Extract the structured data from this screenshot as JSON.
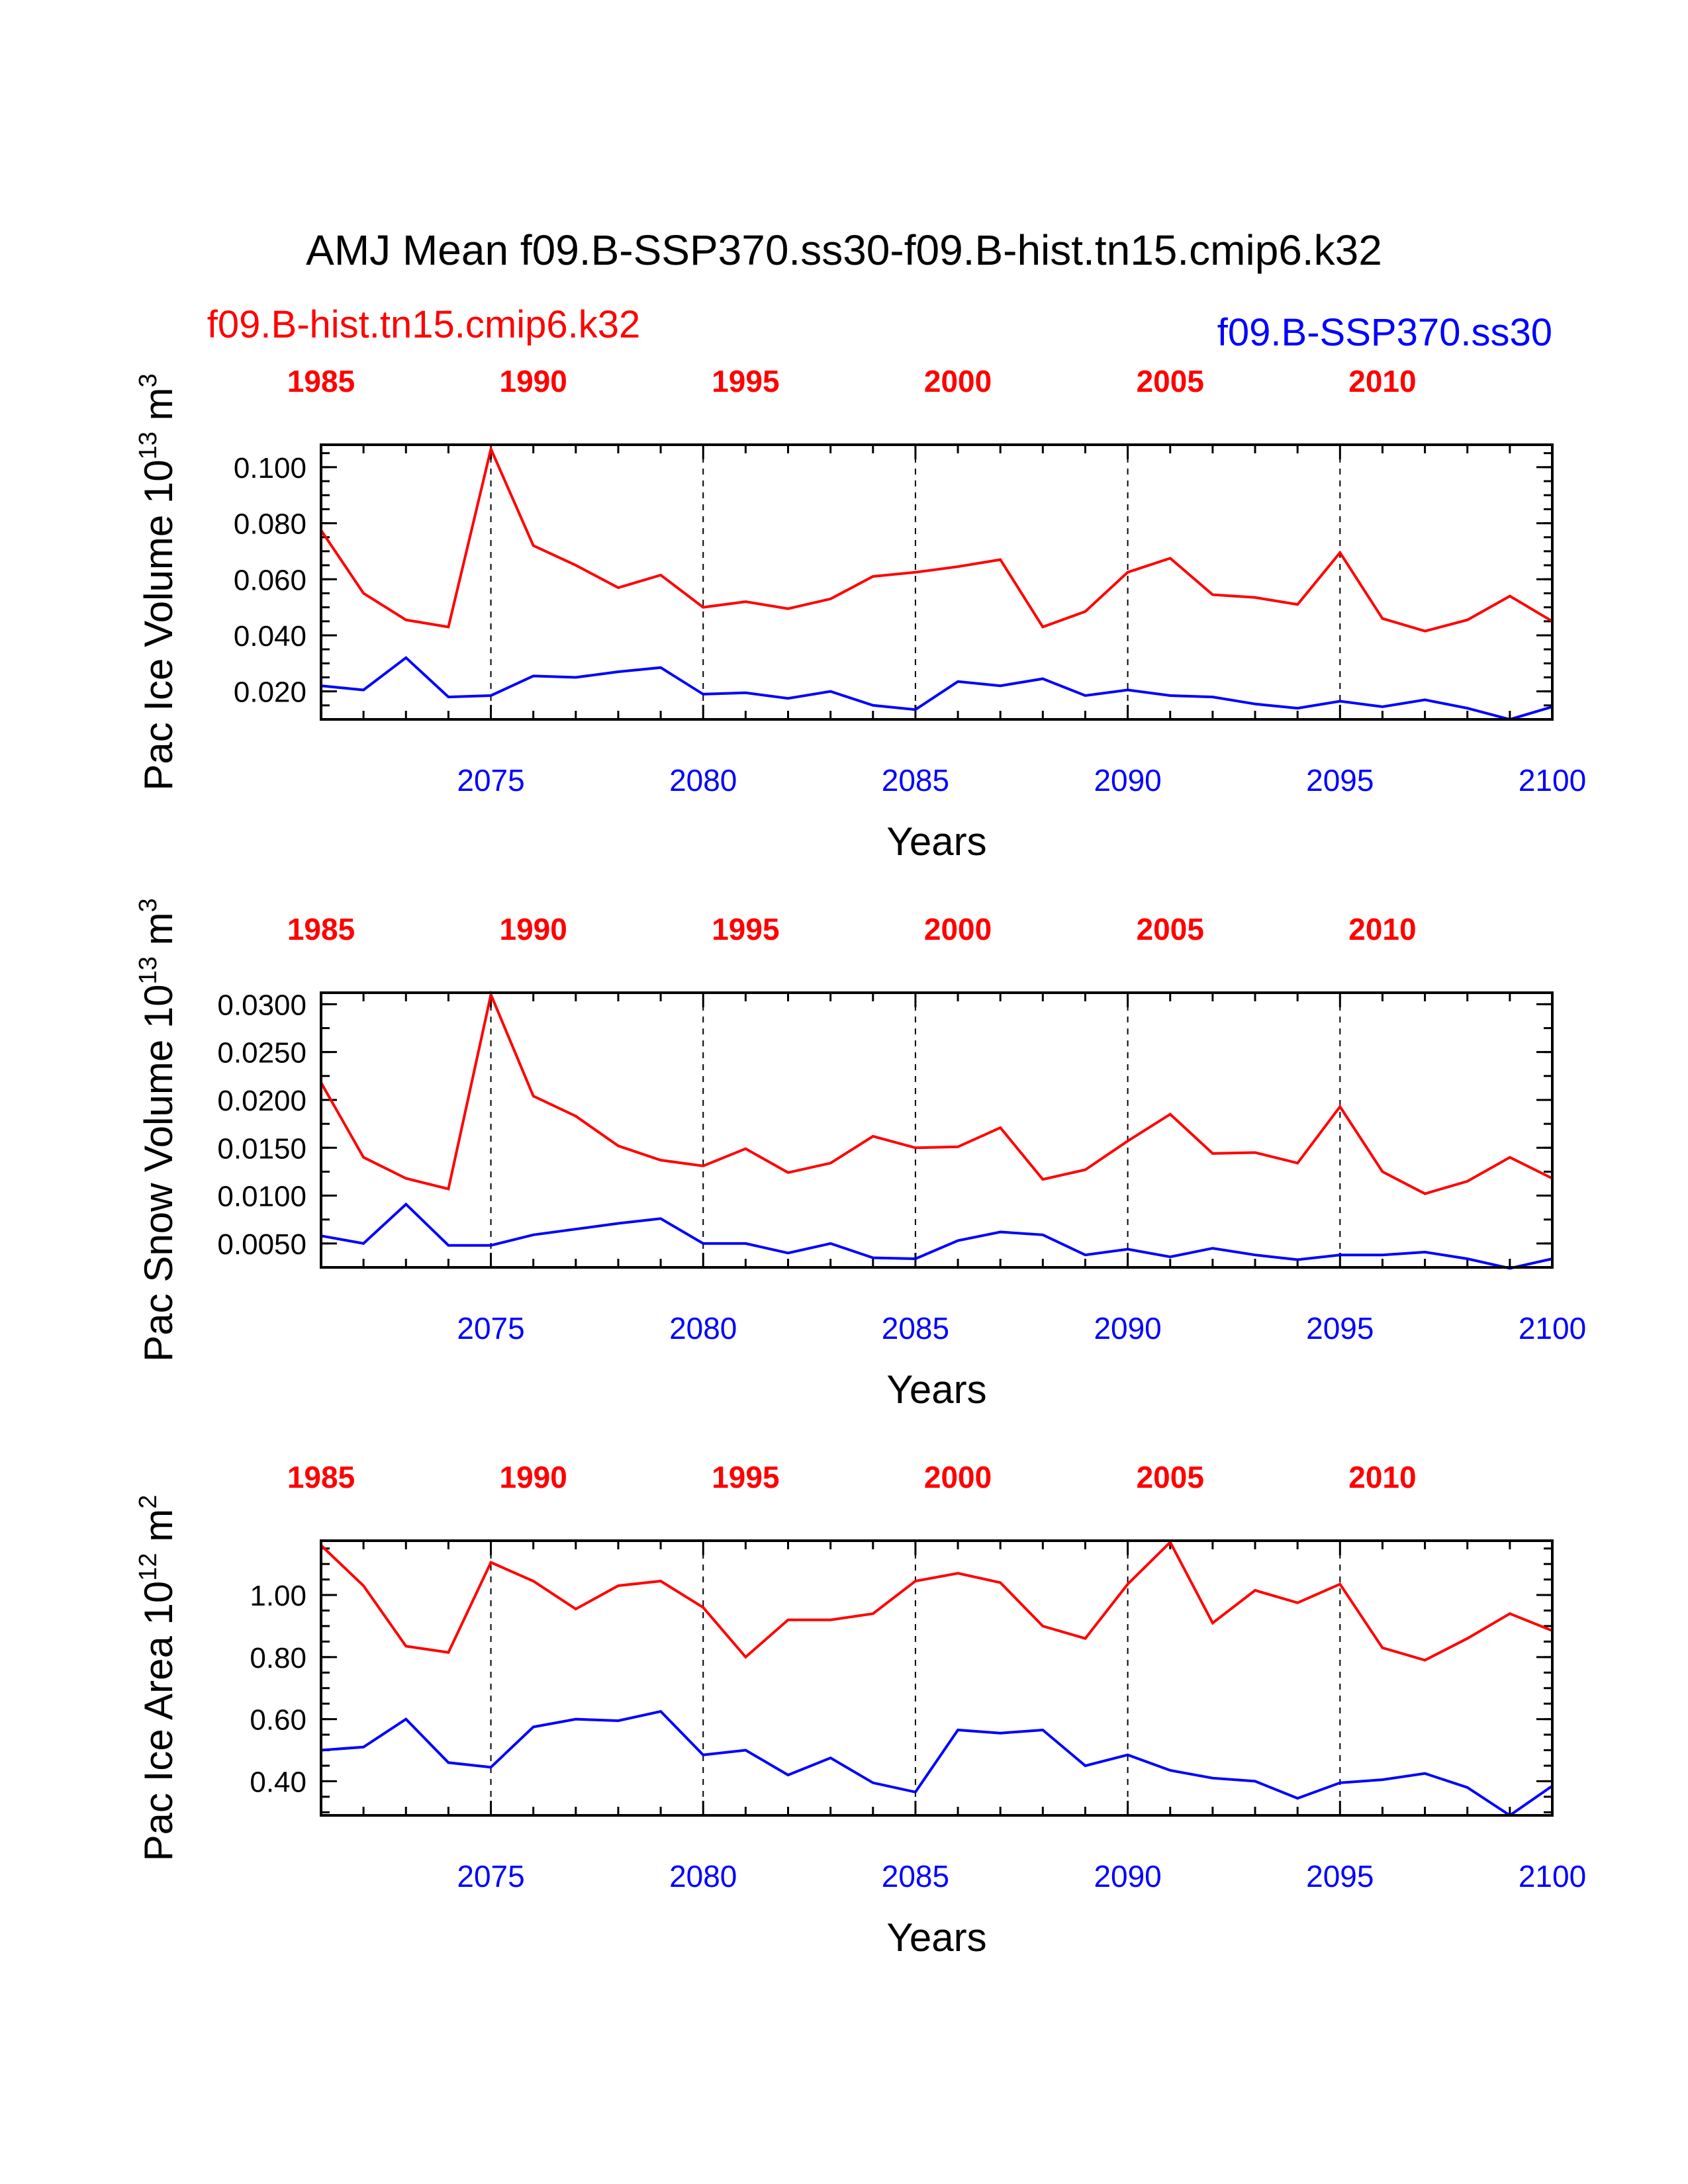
{
  "title": "AMJ Mean f09.B-SSP370.ss30-f09.B-hist.tn15.cmip6.k32",
  "legend": {
    "hist": {
      "label": "f09.B-hist.tn15.cmip6.k32",
      "color": "#ff0000"
    },
    "ssp": {
      "label": "f09.B-SSP370.ss30",
      "color": "#0000ff"
    }
  },
  "colors": {
    "hist": "#ff0000",
    "ssp": "#0000ff",
    "axis": "#000000"
  },
  "chart_data": [
    {
      "type": "line",
      "ylabel_main": "Pac Ice Volume 10",
      "ylabel_exp": "13",
      "ylabel_unit": " m",
      "ylabel_unit_exp": "3",
      "xlabel": "Years",
      "xlim": [
        2071,
        2100
      ],
      "ylim": [
        0.01,
        0.108
      ],
      "yticks": [
        0.02,
        0.04,
        0.06,
        0.08,
        0.1
      ],
      "ytick_labels": [
        "0.020",
        "0.040",
        "0.060",
        "0.080",
        "0.100"
      ],
      "yminor_step": 0.005,
      "bottom_ticks": [
        2075,
        2080,
        2085,
        2090,
        2095,
        2100
      ],
      "bottom_tick_labels": [
        "2075",
        "2080",
        "2085",
        "2090",
        "2095",
        "2100"
      ],
      "top_ticks": [
        1985,
        1990,
        1995,
        2000,
        2005,
        2010
      ],
      "top_tick_labels": [
        "1985",
        "1990",
        "1995",
        "2000",
        "2005",
        "2010"
      ],
      "top_offset": 86,
      "grid_x": [
        2075,
        2080,
        2085,
        2090,
        2095
      ],
      "x": [
        2071,
        2072,
        2073,
        2074,
        2075,
        2076,
        2077,
        2078,
        2079,
        2080,
        2081,
        2082,
        2083,
        2084,
        2085,
        2086,
        2087,
        2088,
        2089,
        2090,
        2091,
        2092,
        2093,
        2094,
        2095,
        2096,
        2097,
        2098,
        2099,
        2100
      ],
      "series": [
        {
          "name": "f09.B-hist.tn15.cmip6.k32",
          "key": "hist",
          "values": [
            0.0775,
            0.055,
            0.0455,
            0.043,
            0.1065,
            0.072,
            0.065,
            0.057,
            0.0615,
            0.05,
            0.052,
            0.0495,
            0.053,
            0.061,
            0.0625,
            0.0645,
            0.067,
            0.043,
            0.0485,
            0.0625,
            0.0675,
            0.0545,
            0.0535,
            0.051,
            0.0695,
            0.046,
            0.0415,
            0.0455,
            0.054,
            0.045
          ]
        },
        {
          "name": "f09.B-SSP370.ss30",
          "key": "ssp",
          "values": [
            0.022,
            0.0205,
            0.032,
            0.018,
            0.0185,
            0.0255,
            0.025,
            0.027,
            0.0285,
            0.019,
            0.0195,
            0.0175,
            0.02,
            0.015,
            0.0135,
            0.0235,
            0.022,
            0.0245,
            0.0185,
            0.0205,
            0.0185,
            0.018,
            0.0155,
            0.014,
            0.0165,
            0.0145,
            0.017,
            0.014,
            0.01,
            0.0145
          ]
        }
      ]
    },
    {
      "type": "line",
      "ylabel_main": "Pac Snow Volume 10",
      "ylabel_exp": "13",
      "ylabel_unit": " m",
      "ylabel_unit_exp": "3",
      "xlabel": "Years",
      "xlim": [
        2071,
        2100
      ],
      "ylim": [
        0.0025,
        0.0312
      ],
      "yticks": [
        0.005,
        0.01,
        0.015,
        0.02,
        0.025,
        0.03
      ],
      "ytick_labels": [
        "0.0050",
        "0.0100",
        "0.0150",
        "0.0200",
        "0.0250",
        "0.0300"
      ],
      "yminor_step": 0.0025,
      "bottom_ticks": [
        2075,
        2080,
        2085,
        2090,
        2095,
        2100
      ],
      "bottom_tick_labels": [
        "2075",
        "2080",
        "2085",
        "2090",
        "2095",
        "2100"
      ],
      "top_ticks": [
        1985,
        1990,
        1995,
        2000,
        2005,
        2010
      ],
      "top_tick_labels": [
        "1985",
        "1990",
        "1995",
        "2000",
        "2005",
        "2010"
      ],
      "top_offset": 86,
      "grid_x": [
        2075,
        2080,
        2085,
        2090,
        2095
      ],
      "x": [
        2071,
        2072,
        2073,
        2074,
        2075,
        2076,
        2077,
        2078,
        2079,
        2080,
        2081,
        2082,
        2083,
        2084,
        2085,
        2086,
        2087,
        2088,
        2089,
        2090,
        2091,
        2092,
        2093,
        2094,
        2095,
        2096,
        2097,
        2098,
        2099,
        2100
      ],
      "series": [
        {
          "name": "f09.B-hist.tn15.cmip6.k32",
          "key": "hist",
          "values": [
            0.0218,
            0.014,
            0.0118,
            0.0107,
            0.031,
            0.0204,
            0.0183,
            0.0152,
            0.0137,
            0.0131,
            0.0149,
            0.0124,
            0.0134,
            0.0162,
            0.015,
            0.0151,
            0.0171,
            0.0117,
            0.0127,
            0.0157,
            0.0185,
            0.0144,
            0.0145,
            0.0134,
            0.0193,
            0.0125,
            0.0102,
            0.0115,
            0.014,
            0.0118
          ]
        },
        {
          "name": "f09.B-SSP370.ss30",
          "key": "ssp",
          "values": [
            0.0058,
            0.005,
            0.0091,
            0.0048,
            0.0048,
            0.0059,
            0.0065,
            0.0071,
            0.0076,
            0.005,
            0.005,
            0.004,
            0.005,
            0.0035,
            0.0034,
            0.0053,
            0.0062,
            0.0059,
            0.0038,
            0.0044,
            0.0036,
            0.0045,
            0.0038,
            0.0033,
            0.0038,
            0.0038,
            0.0041,
            0.0034,
            0.0024,
            0.0034
          ]
        }
      ]
    },
    {
      "type": "line",
      "ylabel_main": "Pac Ice Area 10",
      "ylabel_exp": "12",
      "ylabel_unit": " m",
      "ylabel_unit_exp": "2",
      "xlabel": "Years",
      "xlim": [
        2071,
        2100
      ],
      "ylim": [
        0.29,
        1.175
      ],
      "yticks": [
        0.4,
        0.6,
        0.8,
        1.0
      ],
      "ytick_labels": [
        "0.40",
        "0.60",
        "0.80",
        "1.00"
      ],
      "yminor_step": 0.05,
      "bottom_ticks": [
        2075,
        2080,
        2085,
        2090,
        2095,
        2100
      ],
      "bottom_tick_labels": [
        "2075",
        "2080",
        "2085",
        "2090",
        "2095",
        "2100"
      ],
      "top_ticks": [
        1985,
        1990,
        1995,
        2000,
        2005,
        2010
      ],
      "top_tick_labels": [
        "1985",
        "1990",
        "1995",
        "2000",
        "2005",
        "2010"
      ],
      "top_offset": 86,
      "grid_x": [
        2075,
        2080,
        2085,
        2090,
        2095
      ],
      "x": [
        2071,
        2072,
        2073,
        2074,
        2075,
        2076,
        2077,
        2078,
        2079,
        2080,
        2081,
        2082,
        2083,
        2084,
        2085,
        2086,
        2087,
        2088,
        2089,
        2090,
        2091,
        2092,
        2093,
        2094,
        2095,
        2096,
        2097,
        2098,
        2099,
        2100
      ],
      "series": [
        {
          "name": "f09.B-hist.tn15.cmip6.k32",
          "key": "hist",
          "values": [
            1.16,
            1.03,
            0.835,
            0.815,
            1.105,
            1.045,
            0.955,
            1.03,
            1.045,
            0.96,
            0.8,
            0.92,
            0.92,
            0.94,
            1.045,
            1.07,
            1.04,
            0.9,
            0.86,
            1.035,
            1.17,
            0.91,
            1.015,
            0.975,
            1.035,
            0.83,
            0.79,
            0.86,
            0.94,
            0.885
          ]
        },
        {
          "name": "f09.B-SSP370.ss30",
          "key": "ssp",
          "values": [
            0.5,
            0.51,
            0.6,
            0.46,
            0.445,
            0.575,
            0.6,
            0.595,
            0.625,
            0.485,
            0.5,
            0.42,
            0.475,
            0.395,
            0.365,
            0.565,
            0.555,
            0.565,
            0.45,
            0.485,
            0.435,
            0.41,
            0.4,
            0.345,
            0.395,
            0.405,
            0.425,
            0.38,
            0.29,
            0.385
          ]
        }
      ]
    }
  ]
}
